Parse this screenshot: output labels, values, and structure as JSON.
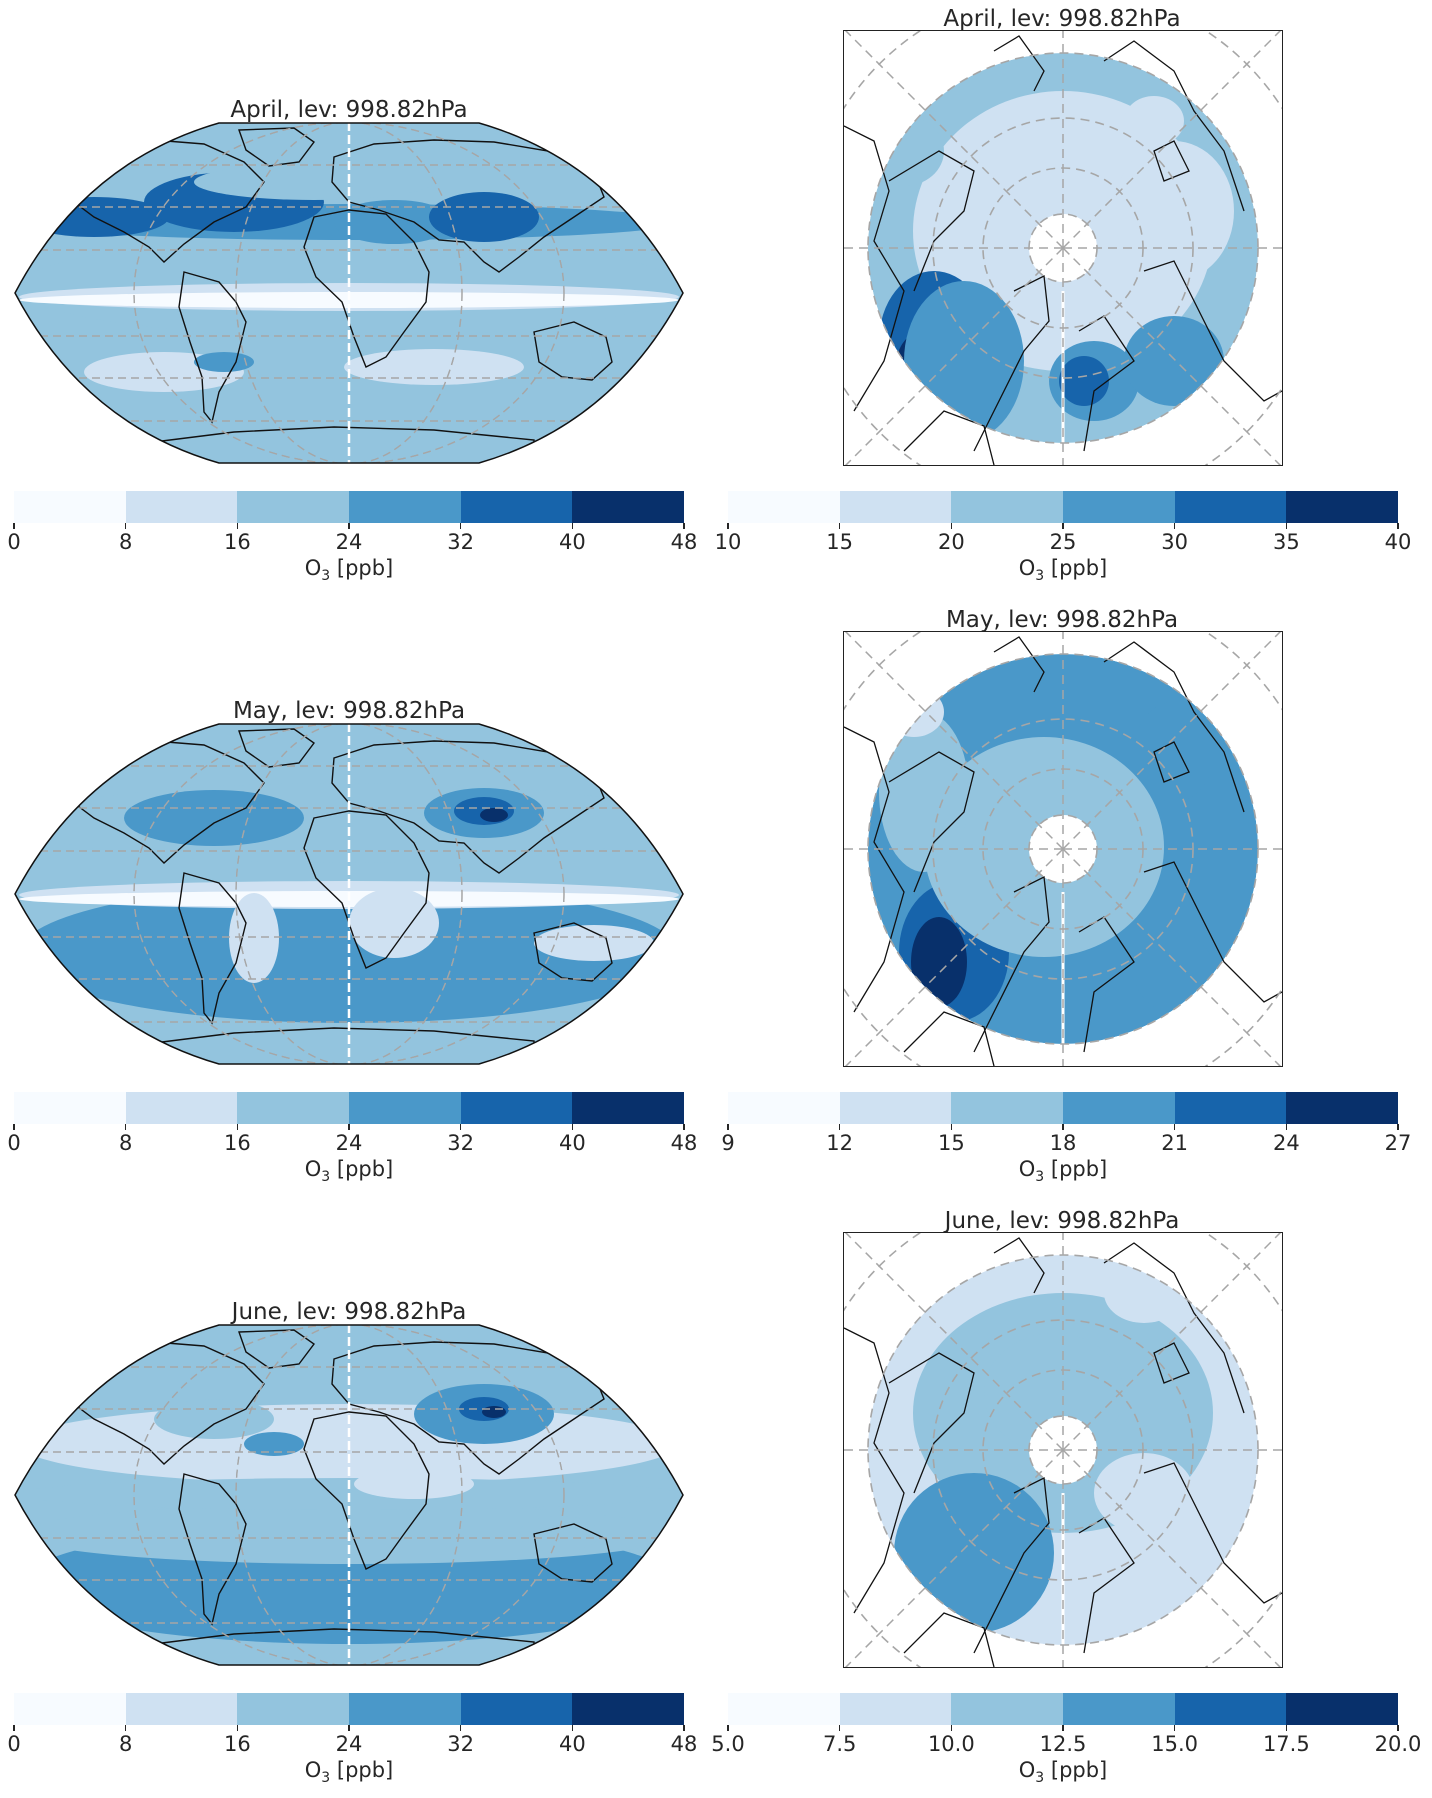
{
  "rows": [
    {
      "global": {
        "title": "April, lev: 998.82hPa",
        "ticks": [
          "0",
          "8",
          "16",
          "24",
          "32",
          "40",
          "48"
        ]
      },
      "polar": {
        "title": "April, lev: 998.82hPa",
        "ticks": [
          "10",
          "15",
          "20",
          "25",
          "30",
          "35",
          "40"
        ]
      }
    },
    {
      "global": {
        "title": "May, lev: 998.82hPa",
        "ticks": [
          "0",
          "8",
          "16",
          "24",
          "32",
          "40",
          "48"
        ]
      },
      "polar": {
        "title": "May, lev: 998.82hPa",
        "ticks": [
          "9",
          "12",
          "15",
          "18",
          "21",
          "24",
          "27"
        ]
      }
    },
    {
      "global": {
        "title": "June, lev: 998.82hPa",
        "ticks": [
          "0",
          "8",
          "16",
          "24",
          "32",
          "40",
          "48"
        ]
      },
      "polar": {
        "title": "June, lev: 998.82hPa",
        "ticks": [
          "5.0",
          "7.5",
          "10.0",
          "12.5",
          "15.0",
          "17.5",
          "20.0"
        ]
      }
    }
  ],
  "colorbar_label": {
    "species": "O",
    "subscript": "3",
    "unit": "[ppb]"
  },
  "colormap": "Blues",
  "colors": [
    "#f7fbff",
    "#cfe1f2",
    "#93c4de",
    "#4a98c9",
    "#1764ab",
    "#08306b"
  ],
  "gridlines": "dashed gray",
  "coastlines": "black"
}
